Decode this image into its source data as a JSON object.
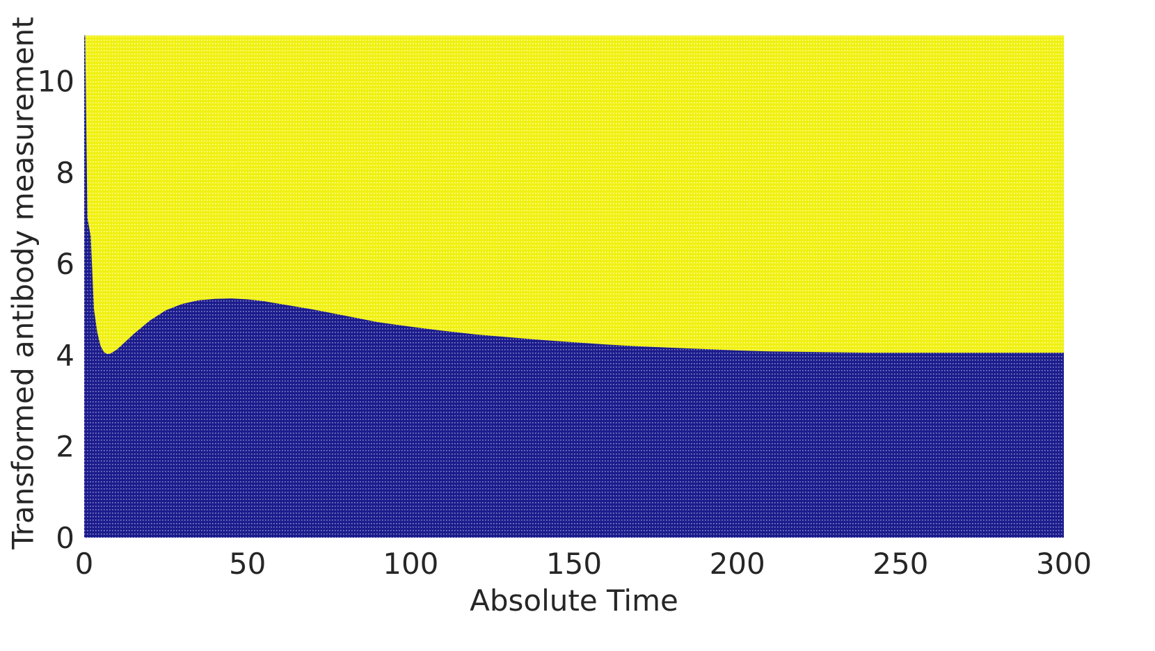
{
  "chart_data": {
    "type": "heatmap",
    "title": "",
    "xlabel": "Absolute Time",
    "ylabel": "Transformed antibody measurement",
    "xlim": [
      0,
      300
    ],
    "ylim": [
      0,
      11
    ],
    "x_ticks": [
      "0",
      "50",
      "100",
      "150",
      "200",
      "250",
      "300"
    ],
    "y_ticks": [
      "0",
      "2",
      "4",
      "6",
      "8",
      "10"
    ],
    "grid": false,
    "legend": "none",
    "colors": {
      "below_boundary": "#1c1c8c",
      "above_boundary": "#f0f014",
      "grid_dot_below": "#8a8ad0",
      "grid_dot_above": "#ffff9a",
      "text": "#262626"
    },
    "regions": [
      {
        "label": "lower region",
        "color_key": "below_boundary"
      },
      {
        "label": "upper region",
        "color_key": "above_boundary"
      }
    ],
    "boundary": {
      "x": [
        0,
        0.3,
        1,
        2,
        3,
        4,
        5,
        6,
        7,
        8,
        10,
        12,
        15,
        20,
        25,
        30,
        35,
        40,
        45,
        50,
        55,
        60,
        70,
        80,
        90,
        100,
        110,
        120,
        130,
        140,
        150,
        160,
        170,
        180,
        190,
        200,
        210,
        220,
        230,
        240,
        250,
        260,
        270,
        280,
        290,
        300
      ],
      "y": [
        11,
        11,
        7.0,
        6.6,
        5.0,
        4.5,
        4.2,
        4.07,
        4.02,
        4.03,
        4.12,
        4.25,
        4.45,
        4.75,
        4.98,
        5.12,
        5.2,
        5.23,
        5.24,
        5.22,
        5.18,
        5.12,
        5.0,
        4.86,
        4.72,
        4.62,
        4.53,
        4.45,
        4.39,
        4.33,
        4.28,
        4.23,
        4.19,
        4.16,
        4.13,
        4.1,
        4.08,
        4.07,
        4.06,
        4.05,
        4.05,
        4.05,
        4.05,
        4.05,
        4.05,
        4.05
      ]
    }
  }
}
